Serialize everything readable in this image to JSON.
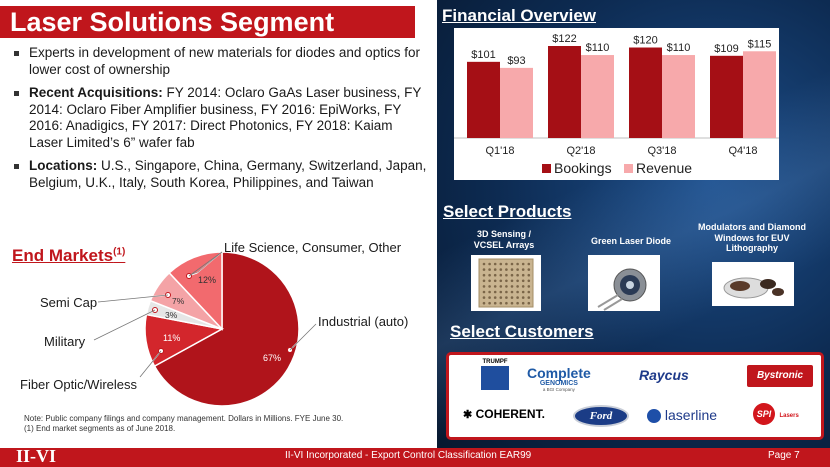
{
  "title": "Laser Solutions Segment",
  "bullets": [
    {
      "bold": "",
      "text": "Experts in development of new materials for diodes and optics for lower cost of ownership"
    },
    {
      "bold": "Recent Acquisitions:",
      "text": " FY 2014: Oclaro GaAs Laser business, FY 2014: Oclaro Fiber Amplifier business, FY 2016: EpiWorks, FY 2016: Anadigics, FY 2017: Direct Photonics, FY 2018: Kaiam Laser Limited’s 6” wafer fab"
    },
    {
      "bold": "Locations:",
      "text": " U.S., Singapore, China, Germany, Switzerland, Japan, Belgium, U.K., Italy, South Korea, Philippines, and Taiwan"
    }
  ],
  "end_markets": {
    "title": "End Markets",
    "title_sup": "(1)",
    "labels": {
      "life_science": "Life Science, Consumer, Other",
      "semi_cap": "Semi Cap",
      "military": "Military",
      "fiber_optic": "Fiber Optic/Wireless",
      "industrial": "Industrial (auto)"
    },
    "slices": [
      {
        "name": "Industrial (auto)",
        "value": 67,
        "label": "67%",
        "color": "#b0141b"
      },
      {
        "name": "Fiber Optic/Wireless",
        "value": 11,
        "label": "11%",
        "color": "#d3262c"
      },
      {
        "name": "Military",
        "value": 3,
        "label": "3%",
        "color": "#e6e6e6"
      },
      {
        "name": "Semi Cap",
        "value": 7,
        "label": "7%",
        "color": "#f4a3a6"
      },
      {
        "name": "Life Science, Consumer, Other",
        "value": 12,
        "label": "12%",
        "color": "#f26a6e"
      }
    ]
  },
  "notes": {
    "line1": "Note: Public company filings and company management. Dollars in Millions. FYE June 30.",
    "line2": "(1) End market segments as of June 2018."
  },
  "financial": {
    "title": "Financial Overview"
  },
  "chart_data": {
    "type": "bar",
    "categories": [
      "Q1'18",
      "Q2'18",
      "Q3'18",
      "Q4'18"
    ],
    "series": [
      {
        "name": "Bookings",
        "values": [
          101,
          122,
          120,
          109
        ],
        "labels": [
          "$101",
          "$122",
          "$120",
          "$109"
        ],
        "color": "#a50f15"
      },
      {
        "name": "Revenue",
        "values": [
          93,
          110,
          110,
          115
        ],
        "labels": [
          "$93",
          "$110",
          "$110",
          "$115"
        ],
        "color": "#f7a9ab"
      }
    ],
    "ylim": [
      0,
      130
    ],
    "legend": "bottom"
  },
  "products": {
    "title": "Select Products",
    "items": [
      {
        "label": "3D Sensing / VCSEL Arrays"
      },
      {
        "label": "Green Laser Diode"
      },
      {
        "label": "Modulators and Diamond Windows for EUV Lithography"
      }
    ]
  },
  "customers": {
    "title": "Select Customers",
    "items": [
      "TRUMPF",
      "Complete",
      "GENOMICS",
      "Raycus",
      "Bystronic",
      "COHERENT.",
      "Ford",
      "laserline",
      "SPI",
      "Lasers"
    ],
    "complete_sub": "a BGI Company"
  },
  "footer": {
    "logo": "II-VI",
    "text": "II-VI Incorporated - Export Control Classification EAR99",
    "page": "Page 7"
  },
  "colors": {
    "accent": "#c0161c",
    "navy": "#0d2b52"
  }
}
